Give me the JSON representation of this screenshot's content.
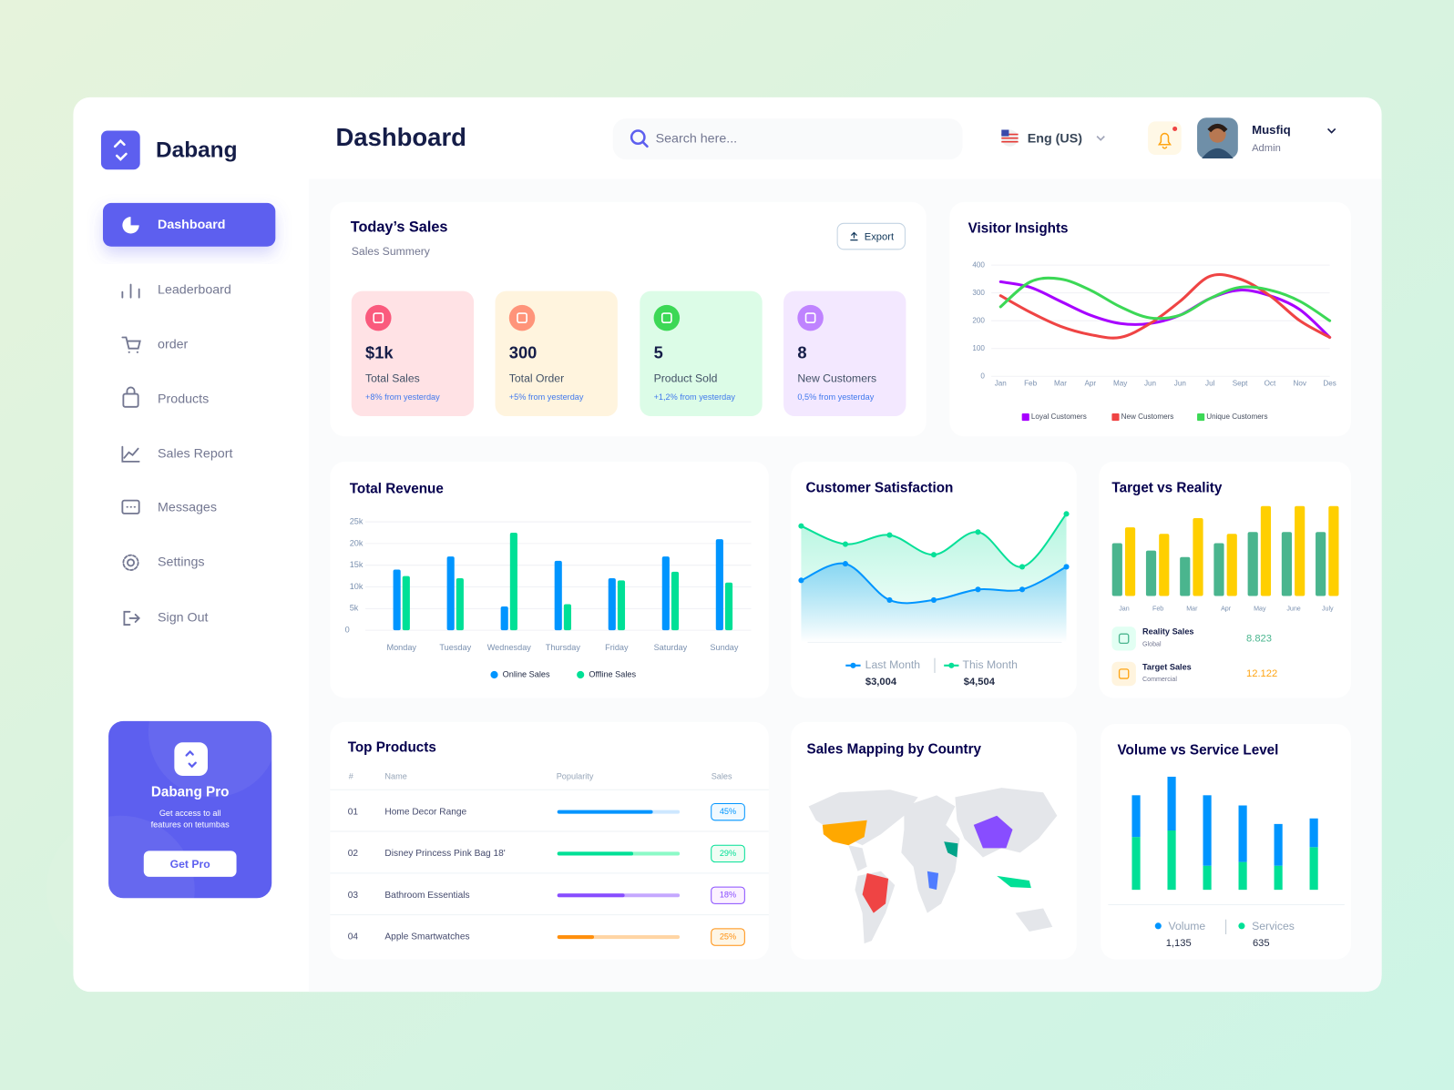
{
  "brand": "Dabang",
  "header": {
    "title": "Dashboard",
    "search_placeholder": "Search here...",
    "language": "Eng (US)",
    "user": {
      "name": "Musfiq",
      "role": "Admin"
    }
  },
  "nav": [
    "Dashboard",
    "Leaderboard",
    "order",
    "Products",
    "Sales Report",
    "Messages",
    "Settings",
    "Sign Out"
  ],
  "promo": {
    "title": "Dabang Pro",
    "text": [
      "Get access to all",
      "features on tetumbas"
    ],
    "button": "Get Pro"
  },
  "todays_sales": {
    "title": "Today’s Sales",
    "subtitle": "Sales Summery",
    "button": "Export",
    "cards": [
      {
        "value": "$1k",
        "label": "Total Sales",
        "change": "+8% from yesterday"
      },
      {
        "value": "300",
        "label": "Total Order",
        "change": "+5% from yesterday"
      },
      {
        "value": "5",
        "label": "Product Sold",
        "change": "+1,2% from yesterday"
      },
      {
        "value": "8",
        "label": "New Customers",
        "change": "0,5% from yesterday"
      }
    ]
  },
  "visitor_insights": {
    "type": "line",
    "title": "Visitor Insights",
    "categories": [
      "Jan",
      "Feb",
      "Mar",
      "Apr",
      "May",
      "Jun",
      "Jun",
      "Jul",
      "Sept",
      "Oct",
      "Nov",
      "Des"
    ],
    "ylim": [
      0,
      400
    ],
    "yticks": [
      0,
      100,
      200,
      300,
      400
    ],
    "grid": true,
    "series": [
      {
        "name": "Loyal Customers",
        "color": "#a700ff",
        "values": [
          340,
          320,
          270,
          220,
          190,
          190,
          220,
          280,
          310,
          290,
          240,
          140
        ]
      },
      {
        "name": "New Customers",
        "color": "#ef4444",
        "values": [
          290,
          230,
          180,
          150,
          140,
          190,
          270,
          360,
          350,
          290,
          200,
          140
        ]
      },
      {
        "name": "Unique Customers",
        "color": "#3cd856",
        "values": [
          250,
          340,
          350,
          310,
          250,
          210,
          220,
          280,
          320,
          310,
          270,
          200
        ]
      }
    ]
  },
  "total_revenue": {
    "type": "bar",
    "title": "Total Revenue",
    "categories": [
      "Monday",
      "Tuesday",
      "Wednesday",
      "Thursday",
      "Friday",
      "Saturday",
      "Sunday"
    ],
    "ylim": [
      0,
      25000
    ],
    "yticks": [
      0,
      {
        "value": 5000,
        "label": "5k"
      },
      {
        "value": 10000,
        "label": "10k"
      },
      {
        "value": 15000,
        "label": "15k"
      },
      {
        "value": 20000,
        "label": "20k"
      },
      {
        "value": 25000,
        "label": "25k"
      }
    ],
    "grid": true,
    "series": [
      {
        "name": "Online Sales",
        "color": "#0095ff",
        "values": [
          14000,
          17000,
          5500,
          16000,
          12000,
          17000,
          21000
        ]
      },
      {
        "name": "Offline Sales",
        "color": "#00e096",
        "values": [
          12500,
          12000,
          22500,
          6000,
          11500,
          13500,
          11000
        ]
      }
    ]
  },
  "customer_satisfaction": {
    "type": "area",
    "title": "Customer Satisfaction",
    "ylim": [
      0,
      100
    ],
    "series": [
      {
        "name": "Last Month",
        "color": "#0095ff",
        "total": "$3,004",
        "values": [
          41,
          52,
          28,
          28,
          35,
          35,
          50
        ]
      },
      {
        "name": "This Month",
        "color": "#07e098",
        "total": "$4,504",
        "values": [
          77,
          65,
          71,
          58,
          73,
          50,
          85
        ]
      }
    ]
  },
  "target_vs_reality": {
    "type": "bar",
    "title": "Target vs Reality",
    "categories": [
      "Jan",
      "Feb",
      "Mar",
      "Apr",
      "May",
      "June",
      "July"
    ],
    "ylim": [
      0,
      100
    ],
    "series": [
      {
        "name": "Reality Sales",
        "sub": "Global",
        "total": "8.823",
        "color": "#4ab58e",
        "values": [
          57,
          49,
          42,
          57,
          69,
          69,
          69
        ]
      },
      {
        "name": "Target Sales",
        "sub": "Commercial",
        "total": "12.122",
        "color": "#ffcf00",
        "values": [
          74,
          67,
          84,
          67,
          97,
          97,
          97
        ]
      }
    ]
  },
  "top_products": {
    "title": "Top Products",
    "columns": [
      "#",
      "Name",
      "Popularity",
      "Sales"
    ],
    "rows": [
      {
        "rank": "01",
        "name": "Home Decor Range",
        "popularity": 78,
        "sales": "45%"
      },
      {
        "rank": "02",
        "name": "Disney Princess Pink Bag 18'",
        "popularity": 62,
        "sales": "29%"
      },
      {
        "rank": "03",
        "name": "Bathroom Essentials",
        "popularity": 55,
        "sales": "18%"
      },
      {
        "rank": "04",
        "name": "Apple Smartwatches",
        "popularity": 30,
        "sales": "25%"
      }
    ]
  },
  "sales_mapping": {
    "title": "Sales Mapping by Country"
  },
  "volume_vs_service": {
    "type": "stacked_bar",
    "title": "Volume vs Service Level",
    "ylim": [
      0,
      130
    ],
    "series": [
      {
        "name": "Volume",
        "color": "#0095ff",
        "total": "1,135",
        "values": [
          45,
          58,
          76,
          61,
          45,
          31
        ]
      },
      {
        "name": "Services",
        "color": "#00e096",
        "total": "635",
        "values": [
          57,
          64,
          26,
          30,
          26,
          46
        ]
      }
    ]
  }
}
